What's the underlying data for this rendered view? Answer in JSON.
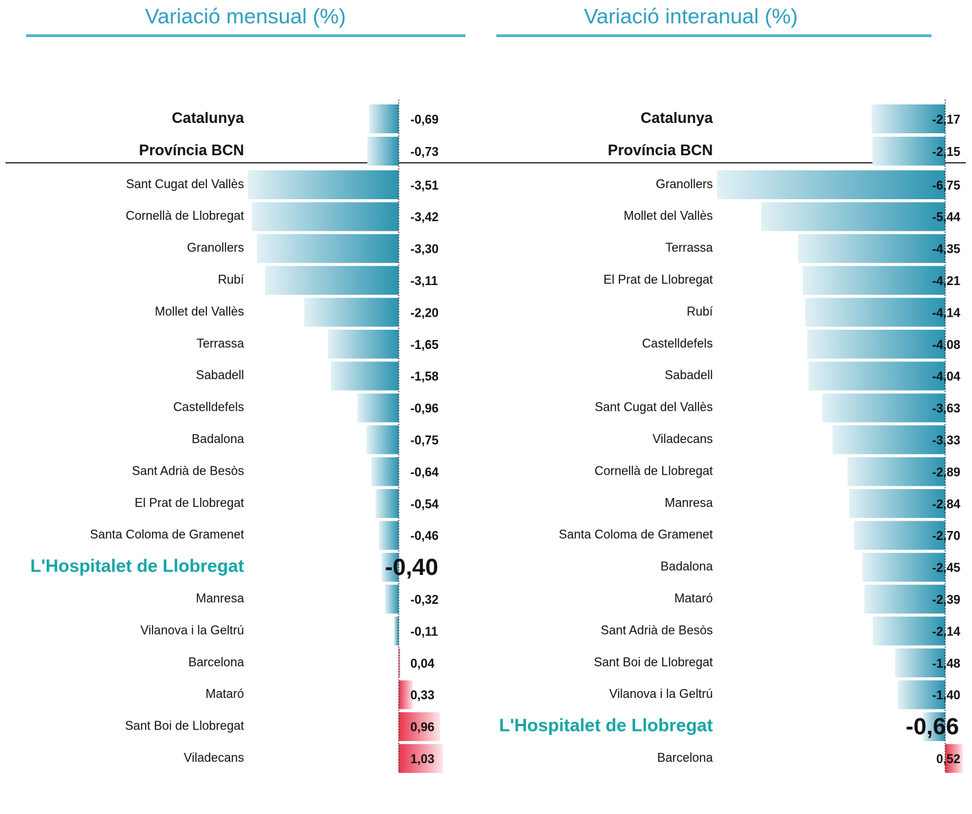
{
  "chart_data": [
    {
      "type": "bar",
      "orientation": "horizontal",
      "title": "Variació mensual (%)",
      "categories": [
        "Catalunya",
        "Província BCN",
        "Sant Cugat del Vallès",
        "Cornellà de Llobregat",
        "Granollers",
        "Rubí",
        "Mollet del Vallès",
        "Terrassa",
        "Sabadell",
        "Castelldefels",
        "Badalona",
        "Sant Adrià de Besòs",
        "El Prat de Llobregat",
        "Santa Coloma de Gramenet",
        "L'Hospitalet de Llobregat",
        "Manresa",
        "Vilanova i la Geltrú",
        "Barcelona",
        "Mataró",
        "Sant Boi de Llobregat",
        "Viladecans"
      ],
      "values": [
        -0.69,
        -0.73,
        -3.51,
        -3.42,
        -3.3,
        -3.11,
        -2.2,
        -1.65,
        -1.58,
        -0.96,
        -0.75,
        -0.64,
        -0.54,
        -0.46,
        -0.4,
        -0.32,
        -0.11,
        0.04,
        0.33,
        0.96,
        1.03
      ],
      "value_labels": [
        "-0,69",
        "-0,73",
        "-3,51",
        "-3,42",
        "-3,30",
        "-3,11",
        "-2,20",
        "-1,65",
        "-1,58",
        "-0,96",
        "-0,75",
        "-0,64",
        "-0,54",
        "-0,46",
        "-0,40",
        "-0,32",
        "-0,11",
        "0,04",
        "0,33",
        "0,96",
        "1,03"
      ],
      "negative_color": "#2b93b0",
      "positive_color": "#e8334a",
      "highlight": 14,
      "highlight_color": "#17a5a5"
    },
    {
      "type": "bar",
      "orientation": "horizontal",
      "title": "Variació interanual (%)",
      "categories": [
        "Catalunya",
        "Província BCN",
        "Granollers",
        "Mollet del Vallès",
        "Terrassa",
        "El Prat de Llobregat",
        "Rubí",
        "Castelldefels",
        "Sabadell",
        "Sant Cugat del Vallès",
        "Viladecans",
        "Cornellà de Llobregat",
        "Manresa",
        "Santa Coloma de Gramenet",
        "Badalona",
        "Mataró",
        "Sant Adrià de Besòs",
        "Sant Boi de Llobregat",
        "Vilanova i la Geltrú",
        "L'Hospitalet de Llobregat",
        "Barcelona"
      ],
      "values": [
        -2.17,
        -2.15,
        -6.75,
        -5.44,
        -4.35,
        -4.21,
        -4.14,
        -4.08,
        -4.04,
        -3.63,
        -3.33,
        -2.89,
        -2.84,
        -2.7,
        -2.45,
        -2.39,
        -2.14,
        -1.48,
        -1.4,
        -0.66,
        0.52
      ],
      "value_labels": [
        "-2,17",
        "-2,15",
        "-6,75",
        "-5,44",
        "-4,35",
        "-4,21",
        "-4,14",
        "-4,08",
        "-4,04",
        "-3,63",
        "-3,33",
        "-2,89",
        "-2,84",
        "-2,70",
        "-2,45",
        "-2,39",
        "-2,14",
        "-1,48",
        "-1,40",
        "-0,66",
        "0,52"
      ],
      "negative_color": "#2b93b0",
      "positive_color": "#e8334a",
      "highlight": 19,
      "highlight_color": "#17a5a5"
    }
  ]
}
